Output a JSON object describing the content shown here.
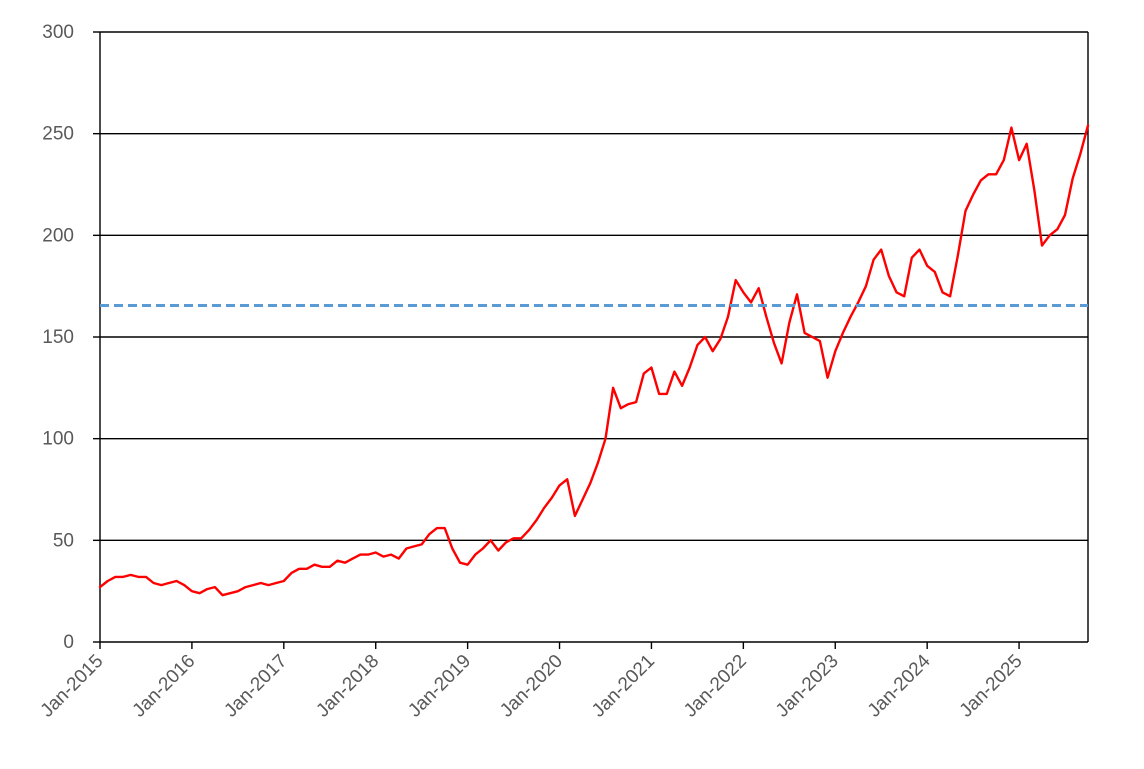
{
  "chart_data": {
    "type": "line",
    "title": "",
    "xlabel": "",
    "ylabel": "",
    "ylim": [
      0,
      300
    ],
    "xlim": [
      "2015-01",
      "2025-10"
    ],
    "y_ticks": [
      0,
      50,
      100,
      150,
      200,
      250,
      300
    ],
    "x_ticks": [
      "Jan-2015",
      "Jan-2016",
      "Jan-2017",
      "Jan-2018",
      "Jan-2019",
      "Jan-2020",
      "Jan-2021",
      "Jan-2022",
      "Jan-2023",
      "Jan-2024",
      "Jan-2025"
    ],
    "grid": "horizontal major lines",
    "legend": "none",
    "series": [
      {
        "color": "#ff0000",
        "style": "solid",
        "points": [
          [
            "2015-01",
            27
          ],
          [
            "2015-02",
            30
          ],
          [
            "2015-03",
            32
          ],
          [
            "2015-04",
            32
          ],
          [
            "2015-05",
            33
          ],
          [
            "2015-06",
            32
          ],
          [
            "2015-07",
            32
          ],
          [
            "2015-08",
            29
          ],
          [
            "2015-09",
            28
          ],
          [
            "2015-10",
            29
          ],
          [
            "2015-11",
            30
          ],
          [
            "2015-12",
            28
          ],
          [
            "2016-01",
            25
          ],
          [
            "2016-02",
            24
          ],
          [
            "2016-03",
            26
          ],
          [
            "2016-04",
            27
          ],
          [
            "2016-05",
            23
          ],
          [
            "2016-06",
            24
          ],
          [
            "2016-07",
            25
          ],
          [
            "2016-08",
            27
          ],
          [
            "2016-09",
            28
          ],
          [
            "2016-10",
            29
          ],
          [
            "2016-11",
            28
          ],
          [
            "2016-12",
            29
          ],
          [
            "2017-01",
            30
          ],
          [
            "2017-02",
            34
          ],
          [
            "2017-03",
            36
          ],
          [
            "2017-04",
            36
          ],
          [
            "2017-05",
            38
          ],
          [
            "2017-06",
            37
          ],
          [
            "2017-07",
            37
          ],
          [
            "2017-08",
            40
          ],
          [
            "2017-09",
            39
          ],
          [
            "2017-10",
            41
          ],
          [
            "2017-11",
            43
          ],
          [
            "2017-12",
            43
          ],
          [
            "2018-01",
            44
          ],
          [
            "2018-02",
            42
          ],
          [
            "2018-03",
            43
          ],
          [
            "2018-04",
            41
          ],
          [
            "2018-05",
            46
          ],
          [
            "2018-06",
            47
          ],
          [
            "2018-07",
            48
          ],
          [
            "2018-08",
            53
          ],
          [
            "2018-09",
            56
          ],
          [
            "2018-10",
            56
          ],
          [
            "2018-11",
            46
          ],
          [
            "2018-12",
            39
          ],
          [
            "2019-01",
            38
          ],
          [
            "2019-02",
            43
          ],
          [
            "2019-03",
            46
          ],
          [
            "2019-04",
            50
          ],
          [
            "2019-05",
            45
          ],
          [
            "2019-06",
            49
          ],
          [
            "2019-07",
            51
          ],
          [
            "2019-08",
            51
          ],
          [
            "2019-09",
            55
          ],
          [
            "2019-10",
            60
          ],
          [
            "2019-11",
            66
          ],
          [
            "2019-12",
            71
          ],
          [
            "2020-01",
            77
          ],
          [
            "2020-02",
            80
          ],
          [
            "2020-03",
            62
          ],
          [
            "2020-04",
            70
          ],
          [
            "2020-05",
            78
          ],
          [
            "2020-06",
            88
          ],
          [
            "2020-07",
            100
          ],
          [
            "2020-08",
            125
          ],
          [
            "2020-09",
            115
          ],
          [
            "2020-10",
            117
          ],
          [
            "2020-11",
            118
          ],
          [
            "2020-12",
            132
          ],
          [
            "2021-01",
            135
          ],
          [
            "2021-02",
            122
          ],
          [
            "2021-03",
            122
          ],
          [
            "2021-04",
            133
          ],
          [
            "2021-05",
            126
          ],
          [
            "2021-06",
            135
          ],
          [
            "2021-07",
            146
          ],
          [
            "2021-08",
            150
          ],
          [
            "2021-09",
            143
          ],
          [
            "2021-10",
            149
          ],
          [
            "2021-11",
            160
          ],
          [
            "2021-12",
            178
          ],
          [
            "2022-01",
            172
          ],
          [
            "2022-02",
            167
          ],
          [
            "2022-03",
            174
          ],
          [
            "2022-04",
            160
          ],
          [
            "2022-05",
            147
          ],
          [
            "2022-06",
            137
          ],
          [
            "2022-07",
            157
          ],
          [
            "2022-08",
            171
          ],
          [
            "2022-09",
            152
          ],
          [
            "2022-10",
            150
          ],
          [
            "2022-11",
            148
          ],
          [
            "2022-12",
            130
          ],
          [
            "2023-01",
            143
          ],
          [
            "2023-02",
            152
          ],
          [
            "2023-03",
            160
          ],
          [
            "2023-04",
            167
          ],
          [
            "2023-05",
            175
          ],
          [
            "2023-06",
            188
          ],
          [
            "2023-07",
            193
          ],
          [
            "2023-08",
            180
          ],
          [
            "2023-09",
            172
          ],
          [
            "2023-10",
            170
          ],
          [
            "2023-11",
            189
          ],
          [
            "2023-12",
            193
          ],
          [
            "2024-01",
            185
          ],
          [
            "2024-02",
            182
          ],
          [
            "2024-03",
            172
          ],
          [
            "2024-04",
            170
          ],
          [
            "2024-05",
            190
          ],
          [
            "2024-06",
            212
          ],
          [
            "2024-07",
            220
          ],
          [
            "2024-08",
            227
          ],
          [
            "2024-09",
            230
          ],
          [
            "2024-10",
            230
          ],
          [
            "2024-11",
            237
          ],
          [
            "2024-12",
            253
          ],
          [
            "2025-01",
            237
          ],
          [
            "2025-02",
            245
          ],
          [
            "2025-03",
            222
          ],
          [
            "2025-04",
            195
          ],
          [
            "2025-05",
            200
          ],
          [
            "2025-06",
            203
          ],
          [
            "2025-07",
            210
          ],
          [
            "2025-08",
            228
          ],
          [
            "2025-09",
            240
          ],
          [
            "2025-10",
            254
          ]
        ]
      },
      {
        "color": "#5b9bd5",
        "style": "dashed",
        "points": [
          [
            "2015-01",
            165.5
          ],
          [
            "2025-10",
            165.5
          ]
        ]
      }
    ]
  }
}
